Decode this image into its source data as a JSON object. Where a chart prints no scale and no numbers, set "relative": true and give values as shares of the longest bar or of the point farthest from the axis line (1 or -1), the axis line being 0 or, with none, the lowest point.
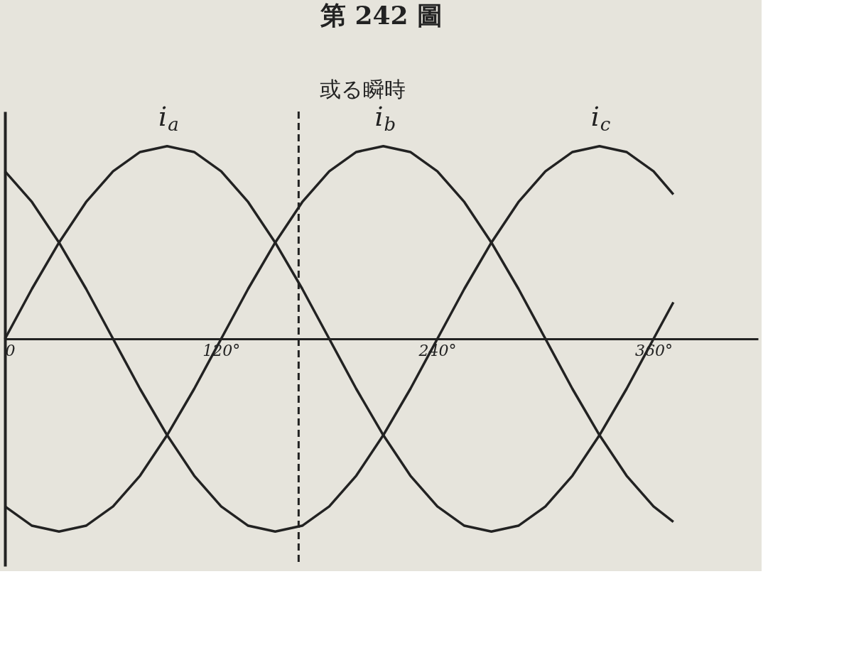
{
  "chart_data": {
    "type": "line",
    "title": "第 242 圖",
    "relative": true,
    "grid": false,
    "marker": "none",
    "line_style": "solid",
    "x": [
      0,
      15,
      30,
      45,
      60,
      75,
      90,
      105,
      120,
      135,
      150,
      165,
      180,
      195,
      210,
      225,
      240,
      255,
      270,
      285,
      300,
      315,
      330,
      345,
      360,
      371
    ],
    "xlim": [
      0,
      418
    ],
    "xticks": [
      {
        "value": 0,
        "label": "0"
      },
      {
        "value": 120,
        "label": "120°"
      },
      {
        "value": 240,
        "label": "240°"
      },
      {
        "value": 360,
        "label": "360°"
      }
    ],
    "series": [
      {
        "name": "i$_{a}$",
        "color": "#222222",
        "values": [
          0,
          0.26,
          0.5,
          0.71,
          0.87,
          0.97,
          1,
          0.97,
          0.87,
          0.71,
          0.5,
          0.26,
          0,
          -0.26,
          -0.5,
          -0.71,
          -0.87,
          -0.97,
          -1,
          -0.97,
          -0.87,
          -0.71,
          -0.5,
          -0.26,
          0,
          0.19
        ]
      },
      {
        "name": "i$_{b}$",
        "color": "#222222",
        "values": [
          -0.87,
          -0.97,
          -1,
          -0.97,
          -0.87,
          -0.71,
          -0.5,
          -0.26,
          0,
          0.26,
          0.5,
          0.71,
          0.87,
          0.97,
          1,
          0.97,
          0.87,
          0.71,
          0.5,
          0.26,
          0,
          -0.26,
          -0.5,
          -0.71,
          -0.87,
          -0.95
        ]
      },
      {
        "name": "i$_{c}$",
        "color": "#222222",
        "values": [
          0.87,
          0.71,
          0.5,
          0.26,
          0,
          -0.26,
          -0.5,
          -0.71,
          -0.87,
          -0.97,
          -1,
          -0.97,
          -0.87,
          -0.71,
          -0.5,
          -0.26,
          0,
          0.26,
          0.5,
          0.71,
          0.87,
          0.97,
          1,
          0.97,
          0.87,
          0.75
        ]
      }
    ],
    "ref_lines": [
      {
        "axis": "x",
        "value": 163,
        "label": "或る瞬時",
        "line_style": "dashed",
        "color": "#222222"
      }
    ]
  }
}
